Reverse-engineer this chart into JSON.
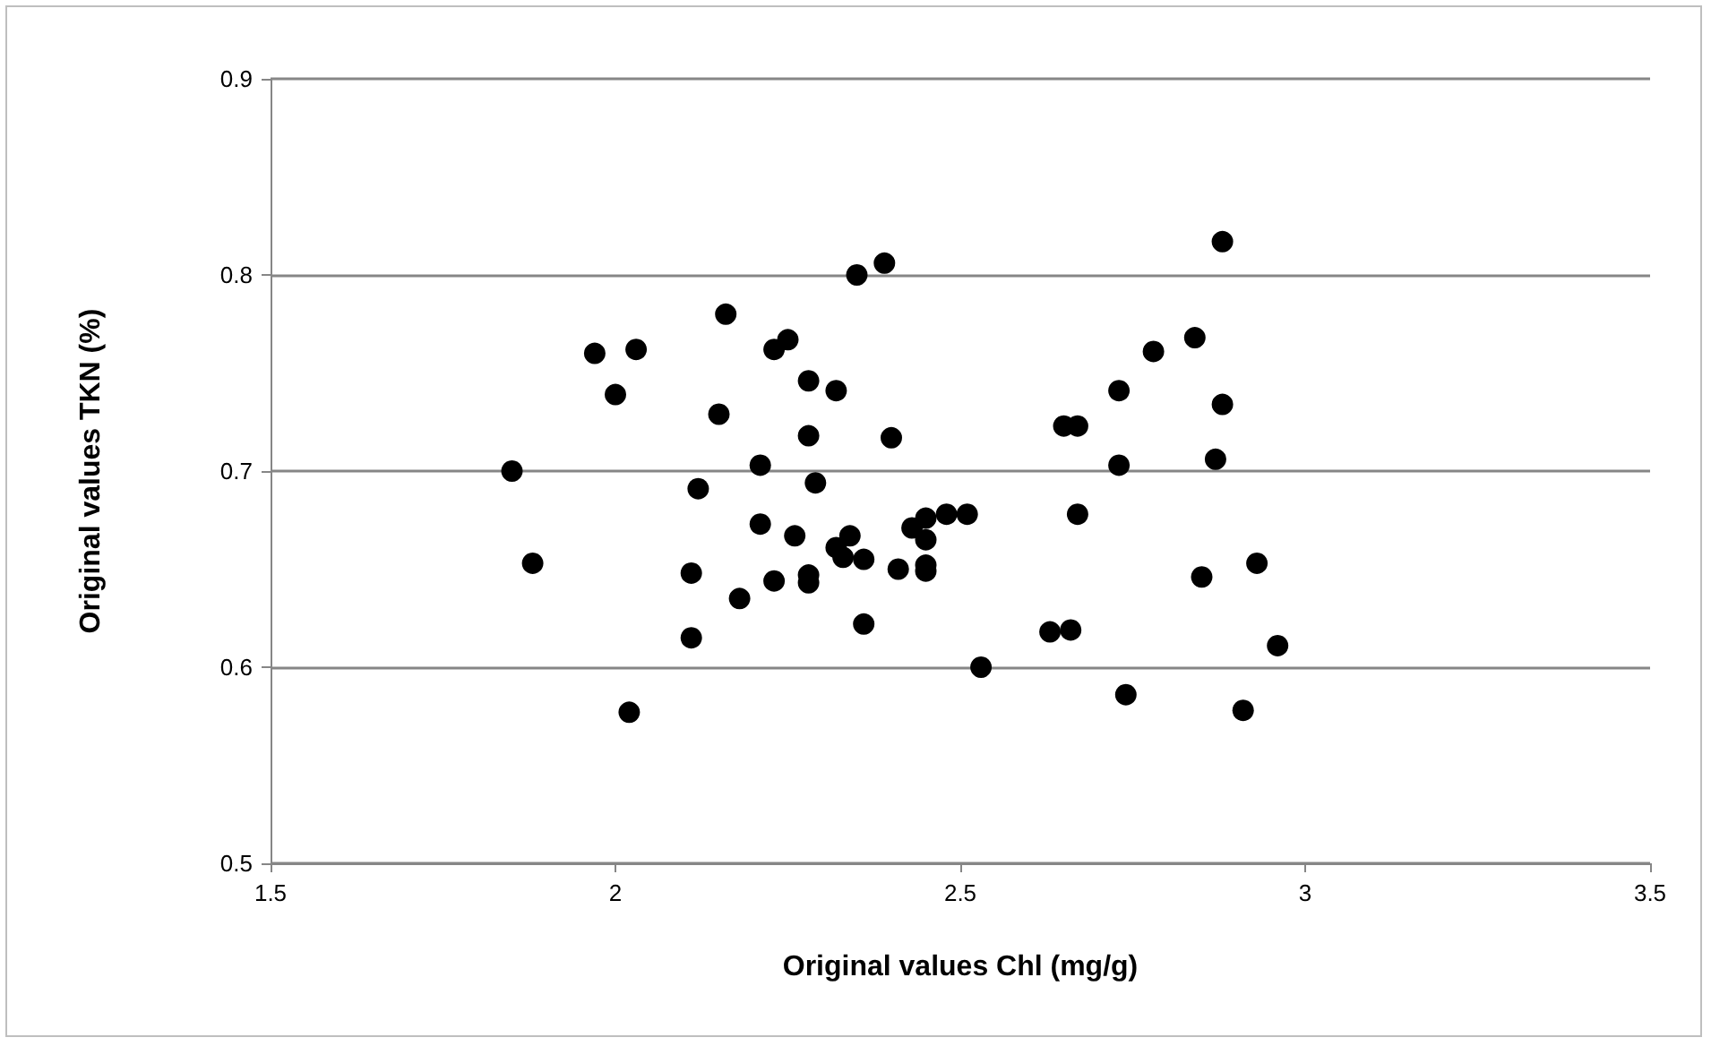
{
  "chart_data": {
    "type": "scatter",
    "xlabel": "Original values Chl (mg/g)",
    "ylabel": "Original values TKN (%)",
    "x": [
      1.85,
      1.88,
      1.97,
      2.0,
      2.02,
      2.03,
      2.11,
      2.11,
      2.12,
      2.15,
      2.16,
      2.18,
      2.21,
      2.21,
      2.23,
      2.23,
      2.25,
      2.26,
      2.28,
      2.28,
      2.28,
      2.28,
      2.29,
      2.32,
      2.32,
      2.33,
      2.34,
      2.35,
      2.36,
      2.36,
      2.39,
      2.4,
      2.41,
      2.43,
      2.45,
      2.45,
      2.45,
      2.45,
      2.48,
      2.51,
      2.53,
      2.63,
      2.65,
      2.66,
      2.67,
      2.67,
      2.73,
      2.73,
      2.74,
      2.78,
      2.84,
      2.85,
      2.87,
      2.88,
      2.88,
      2.91,
      2.93,
      2.96
    ],
    "series": [
      {
        "color": "#000000",
        "values": [
          0.7,
          0.653,
          0.76,
          0.739,
          0.577,
          0.762,
          0.648,
          0.615,
          0.691,
          0.729,
          0.78,
          0.635,
          0.703,
          0.673,
          0.762,
          0.644,
          0.767,
          0.667,
          0.746,
          0.718,
          0.647,
          0.643,
          0.694,
          0.741,
          0.661,
          0.656,
          0.667,
          0.8,
          0.655,
          0.622,
          0.806,
          0.717,
          0.65,
          0.671,
          0.676,
          0.665,
          0.652,
          0.649,
          0.678,
          0.678,
          0.6,
          0.618,
          0.723,
          0.619,
          0.723,
          0.678,
          0.741,
          0.703,
          0.586,
          0.761,
          0.768,
          0.646,
          0.706,
          0.817,
          0.734,
          0.578,
          0.653,
          0.611
        ]
      }
    ],
    "xlim": [
      1.5,
      3.5
    ],
    "xticks": [
      1.5,
      2,
      2.5,
      3,
      3.5
    ],
    "ylim": [
      0.5,
      0.9
    ],
    "yticks": [
      0.5,
      0.6,
      0.7,
      0.8,
      0.9
    ],
    "grid": "y",
    "marker": "circle"
  }
}
